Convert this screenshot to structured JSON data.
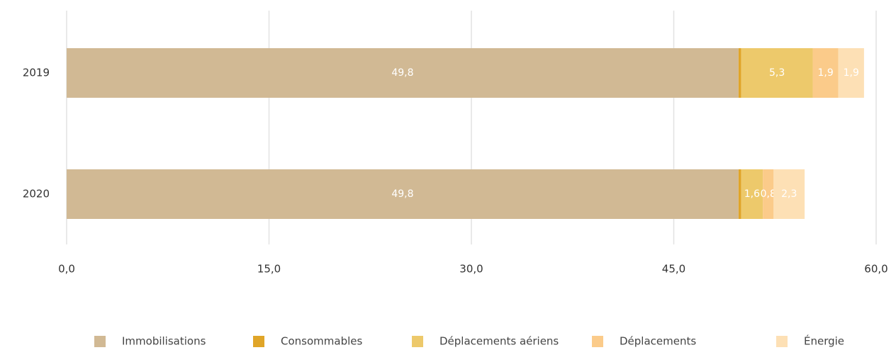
{
  "chart_data": {
    "type": "stacked-barh",
    "categories": [
      "2019",
      "2020"
    ],
    "series": [
      {
        "name": "Immobilisations",
        "color": "#d1b994",
        "values": [
          49.8,
          49.8
        ],
        "value_labels": [
          "49,8",
          "49,8"
        ]
      },
      {
        "name": "Consommables",
        "color": "#e0a528",
        "values": [
          0.2,
          0.2
        ]
      },
      {
        "name": "Déplacements aériens",
        "color": "#edc96b",
        "values": [
          5.3,
          1.6
        ],
        "value_labels": [
          "5,3",
          "1,6"
        ]
      },
      {
        "name": "Déplacements",
        "color": "#fbcb8a",
        "values": [
          1.9,
          0.8
        ],
        "value_labels": [
          "1,9",
          "0,8"
        ]
      },
      {
        "name": "Énergie",
        "color": "#fde0b5",
        "values": [
          1.9,
          2.3
        ],
        "value_labels": [
          "1,9",
          "2,3"
        ]
      }
    ],
    "xlim": [
      0,
      60
    ],
    "xticks": [
      {
        "value": 0,
        "label": "0,0"
      },
      {
        "value": 15,
        "label": "15,0"
      },
      {
        "value": 30,
        "label": "30,0"
      },
      {
        "value": 45,
        "label": "45,0"
      },
      {
        "value": 60,
        "label": "60,0"
      }
    ],
    "grid": true,
    "legend": "bottom"
  }
}
